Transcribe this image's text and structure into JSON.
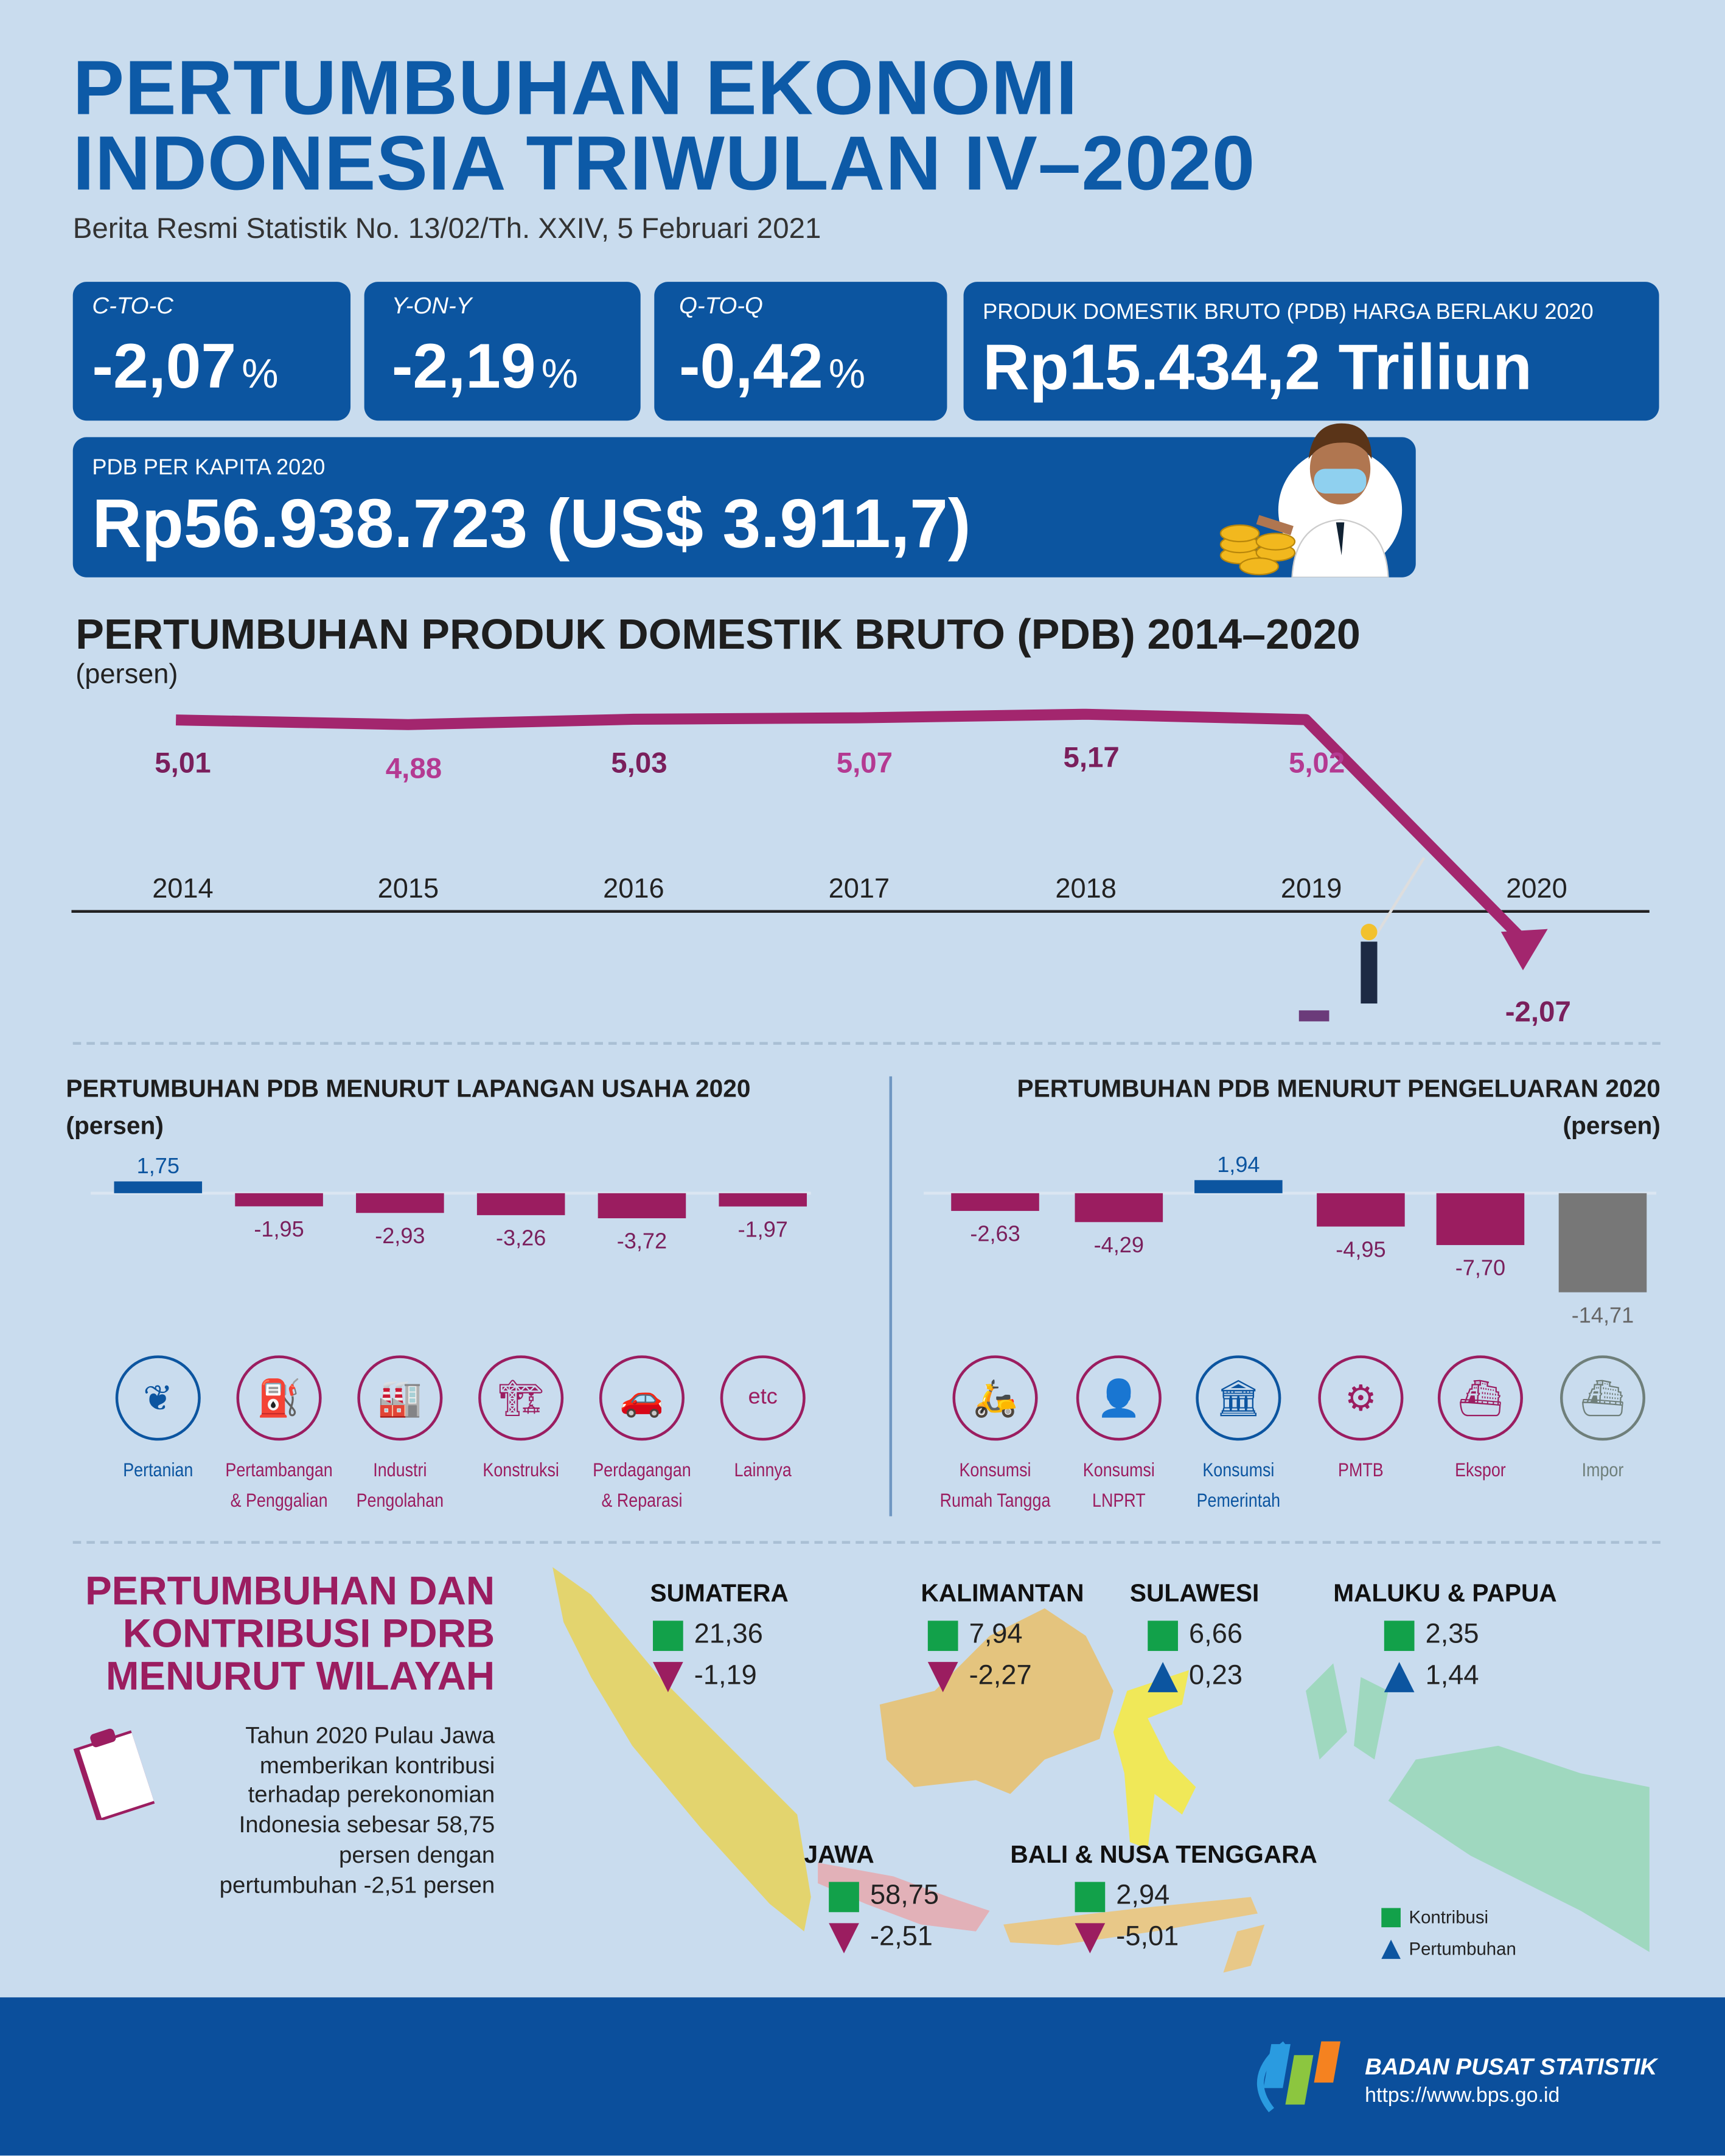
{
  "header": {
    "title_line1": "PERTUMBUHAN EKONOMI",
    "title_line2": "INDONESIA TRIWULAN IV–2020",
    "subtitle": "Berita Resmi Statistik No. 13/02/Th. XXIV, 5 Februari 2021"
  },
  "stats": [
    {
      "label": "C-TO-C",
      "value": "-2,07",
      "unit": "%"
    },
    {
      "label": "Y-ON-Y",
      "value": "-2,19",
      "unit": "%"
    },
    {
      "label": "Q-TO-Q",
      "value": "-0,42",
      "unit": "%"
    }
  ],
  "pdb": {
    "label": "PRODUK DOMESTIK BRUTO (PDB) HARGA BERLAKU 2020",
    "value": "Rp15.434,2 Triliun"
  },
  "per_kapita": {
    "label": "PDB PER KAPITA 2020",
    "value": "Rp56.938.723 (US$ 3.911,7)"
  },
  "colors": {
    "primary": "#0c55a0",
    "magenta": "#9b1d60",
    "positive_bar": "#0c55a0",
    "negative_bar": "#9b1d60",
    "impor_bar": "#777777",
    "contribution": "#12a14a"
  },
  "chart_data": [
    {
      "type": "line",
      "title": "PERTUMBUHAN PRODUK DOMESTIK BRUTO (PDB) 2014–2020",
      "ylabel": "(persen)",
      "categories": [
        "2014",
        "2015",
        "2016",
        "2017",
        "2018",
        "2019",
        "2020"
      ],
      "values": [
        5.01,
        4.88,
        5.03,
        5.07,
        5.17,
        5.02,
        -2.07
      ],
      "labels": [
        "5,01",
        "4,88",
        "5,03",
        "5,07",
        "5,17",
        "5,02",
        "-2,07"
      ]
    },
    {
      "type": "bar",
      "title": "PERTUMBUHAN PDB MENURUT LAPANGAN USAHA 2020",
      "ylabel": "(persen)",
      "categories": [
        "Pertanian",
        "Pertambangan & Penggalian",
        "Industri Pengolahan",
        "Konstruksi",
        "Perdagangan & Reparasi",
        "Lainnya"
      ],
      "category_lines": [
        [
          "Pertanian"
        ],
        [
          "Pertambangan",
          "& Penggalian"
        ],
        [
          "Industri",
          "Pengolahan"
        ],
        [
          "Konstruksi"
        ],
        [
          "Perdagangan",
          "& Reparasi"
        ],
        [
          "Lainnya"
        ]
      ],
      "icons": [
        "leaf-icon",
        "oil-pump-icon",
        "factory-icon",
        "crane-icon",
        "trade-car-icon",
        "etc-icon"
      ],
      "values": [
        1.75,
        -1.95,
        -2.93,
        -3.26,
        -3.72,
        -1.97
      ],
      "labels": [
        "1,75",
        "-1,95",
        "-2,93",
        "-3,26",
        "-3,72",
        "-1,97"
      ],
      "etc_text": "etc"
    },
    {
      "type": "bar",
      "title": "PERTUMBUHAN PDB MENURUT PENGELUARAN 2020",
      "ylabel": "(persen)",
      "categories": [
        "Konsumsi Rumah Tangga",
        "Konsumsi LNPRT",
        "Konsumsi Pemerintah",
        "PMTB",
        "Ekspor",
        "Impor"
      ],
      "category_lines": [
        [
          "Konsumsi",
          "Rumah Tangga"
        ],
        [
          "Konsumsi",
          "LNPRT"
        ],
        [
          "Konsumsi",
          "Pemerintah"
        ],
        [
          "PMTB"
        ],
        [
          "Ekspor"
        ],
        [
          "Impor"
        ]
      ],
      "icons": [
        "household-icon",
        "person-tie-icon",
        "government-building-icon",
        "robot-arm-icon",
        "export-ship-icon",
        "import-ship-icon"
      ],
      "values": [
        -2.63,
        -4.29,
        1.94,
        -4.95,
        -7.7,
        -14.71
      ],
      "labels": [
        "-2,63",
        "-4,29",
        "1,94",
        "-4,95",
        "-7,70",
        "-14,71"
      ]
    }
  ],
  "regional": {
    "title_lines": [
      "PERTUMBUHAN DAN",
      "KONTRIBUSI PDRB",
      "MENURUT WILAYAH"
    ],
    "note_lines": [
      "Tahun 2020 Pulau Jawa",
      "memberikan kontribusi",
      "terhadap perekonomian",
      "Indonesia sebesar 58,75",
      "persen dengan",
      "pertumbuhan -2,51 persen"
    ],
    "regions": [
      {
        "name": "SUMATERA",
        "kontribusi": "21,36",
        "pertumbuhan": "-1,19",
        "direction": "down"
      },
      {
        "name": "KALIMANTAN",
        "kontribusi": "7,94",
        "pertumbuhan": "-2,27",
        "direction": "down"
      },
      {
        "name": "SULAWESI",
        "kontribusi": "6,66",
        "pertumbuhan": "0,23",
        "direction": "up"
      },
      {
        "name": "MALUKU & PAPUA",
        "kontribusi": "2,35",
        "pertumbuhan": "1,44",
        "direction": "up"
      },
      {
        "name": "JAWA",
        "kontribusi": "58,75",
        "pertumbuhan": "-2,51",
        "direction": "down"
      },
      {
        "name": "BALI & NUSA TENGGARA",
        "kontribusi": "2,94",
        "pertumbuhan": "-5,01",
        "direction": "down"
      }
    ],
    "legend": {
      "kontribusi": "Kontribusi",
      "pertumbuhan": "Pertumbuhan"
    }
  },
  "footer": {
    "org": "BADAN PUSAT STATISTIK",
    "url": "https://www.bps.go.id"
  }
}
